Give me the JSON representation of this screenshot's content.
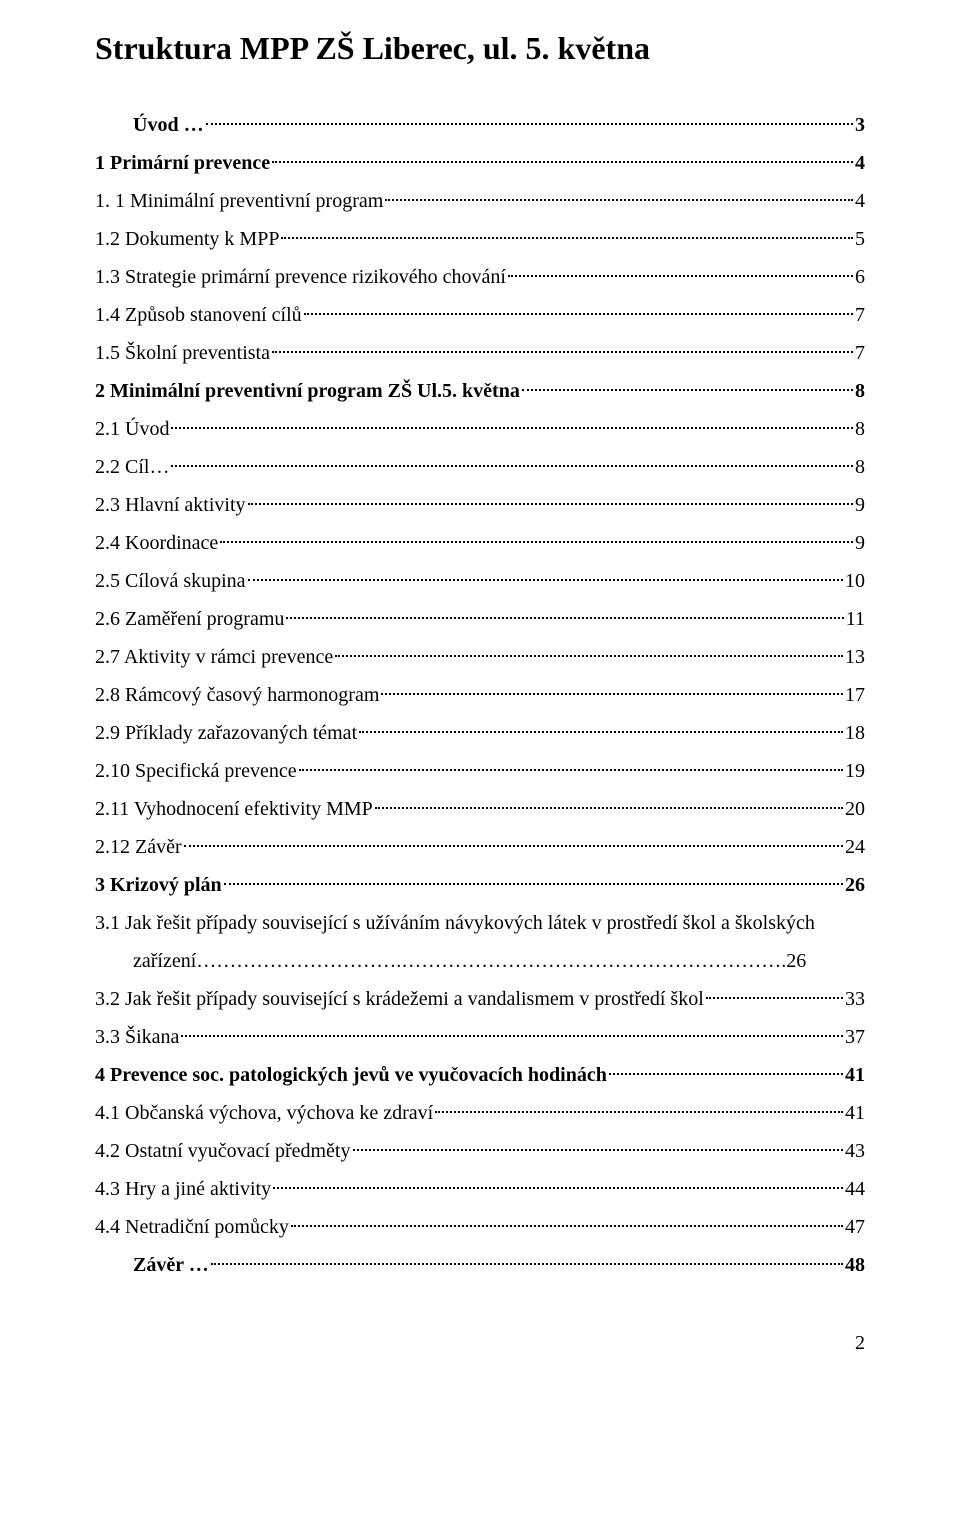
{
  "title": "Struktura MPP ZŠ Liberec, ul. 5. května",
  "toc": [
    {
      "label": "Úvod …",
      "page": "3",
      "indent": 0,
      "bold": true
    },
    {
      "label": "1 Primární prevence",
      "page": "4",
      "indent": 1,
      "bold": true
    },
    {
      "label": "1. 1 Minimální preventivní program",
      "page": "4",
      "indent": 1,
      "bold": false
    },
    {
      "label": "1.2 Dokumenty k MPP",
      "page": "5",
      "indent": 1,
      "bold": false
    },
    {
      "label": "1.3 Strategie primární prevence rizikového chování",
      "page": "6",
      "indent": 1,
      "bold": false
    },
    {
      "label": "1.4 Způsob stanovení cílů",
      "page": "7",
      "indent": 1,
      "bold": false
    },
    {
      "label": "1.5 Školní preventista",
      "page": "7",
      "indent": 1,
      "bold": false
    },
    {
      "label": "2 Minimální preventivní program ZŠ Ul.5. května",
      "page": "8",
      "indent": 1,
      "bold": true
    },
    {
      "label": "2.1 Úvod",
      "page": "8",
      "indent": 1,
      "bold": false
    },
    {
      "label": "2.2  Cíl…",
      "page": "8",
      "indent": 1,
      "bold": false
    },
    {
      "label": "2.3 Hlavní aktivity",
      "page": "9",
      "indent": 1,
      "bold": false
    },
    {
      "label": "2.4 Koordinace",
      "page": "9",
      "indent": 1,
      "bold": false
    },
    {
      "label": "2.5 Cílová skupina",
      "page": "10",
      "indent": 1,
      "bold": false
    },
    {
      "label": "2.6 Zaměření programu",
      "page": "11",
      "indent": 1,
      "bold": false
    },
    {
      "label": "2.7 Aktivity v rámci prevence",
      "page": "13",
      "indent": 1,
      "bold": false
    },
    {
      "label": "2.8 Rámcový časový harmonogram",
      "page": "17",
      "indent": 1,
      "bold": false
    },
    {
      "label": "2.9 Příklady zařazovaných témat",
      "page": "18",
      "indent": 1,
      "bold": false
    },
    {
      "label": "2.10 Specifická prevence",
      "page": "19",
      "indent": 1,
      "bold": false
    },
    {
      "label": "2.11 Vyhodnocení efektivity MMP",
      "page": "20",
      "indent": 1,
      "bold": false
    },
    {
      "label": "2.12 Závěr",
      "page": "24",
      "indent": 1,
      "bold": false
    },
    {
      "label": "3 Krizový plán",
      "page": "26",
      "indent": 1,
      "bold": true
    }
  ],
  "mlEntry": {
    "line1": "3.1 Jak řešit případy související s užíváním návykových látek v prostředí škol a školských",
    "line2_label": "zařízení………………………….…………………………………………………",
    "line2_page": ".26"
  },
  "toc2": [
    {
      "label": "3.2 Jak řešit případy související s krádežemi a vandalismem v prostředí škol",
      "page": "33",
      "indent": 1,
      "bold": false
    },
    {
      "label": "3.3 Šikana",
      "page": "37",
      "indent": 1,
      "bold": false
    },
    {
      "label": "4 Prevence soc. patologických jevů ve vyučovacích hodinách",
      "page": "41",
      "indent": 1,
      "bold": true
    },
    {
      "label": "4.1 Občanská výchova, výchova ke zdraví",
      "page": "41",
      "indent": 1,
      "bold": false
    },
    {
      "label": "4.2 Ostatní vyučovací předměty",
      "page": "43",
      "indent": 1,
      "bold": false
    },
    {
      "label": "4.3 Hry a jiné aktivity",
      "page": "44",
      "indent": 1,
      "bold": false
    },
    {
      "label": "4.4 Netradiční pomůcky",
      "page": "47",
      "indent": 1,
      "bold": false
    },
    {
      "label": "Závěr …",
      "page": "48",
      "indent": 0,
      "bold": true
    }
  ],
  "footerPage": "2"
}
